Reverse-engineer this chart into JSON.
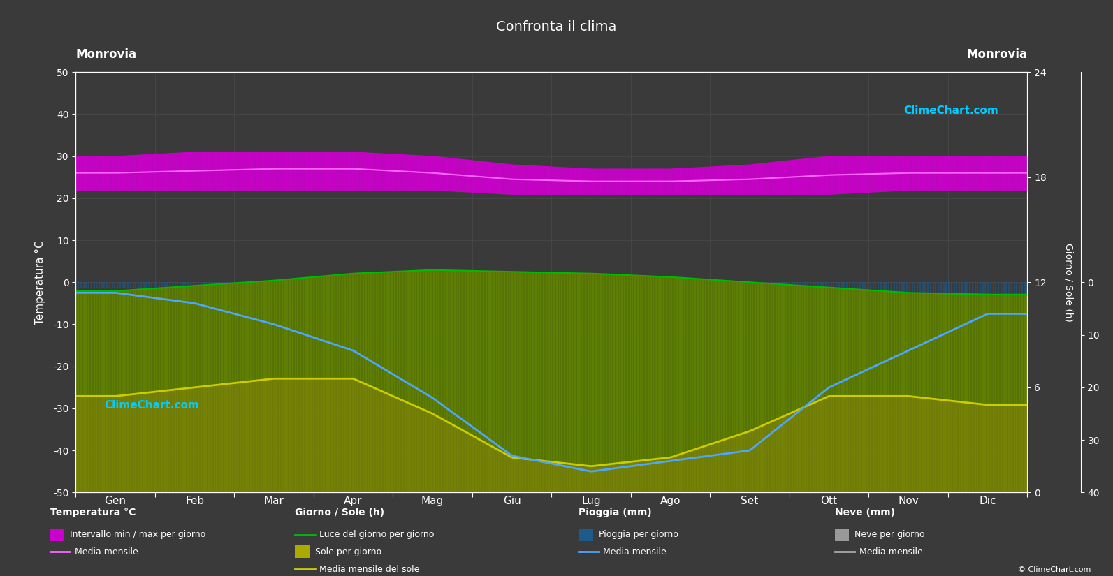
{
  "title": "Confronta il clima",
  "location": "Monrovia",
  "bg_color": "#3a3a3a",
  "text_color": "#ffffff",
  "grid_color": "#555555",
  "months": [
    "Gen",
    "Feb",
    "Mar",
    "Apr",
    "Mag",
    "Giu",
    "Lug",
    "Ago",
    "Set",
    "Ott",
    "Nov",
    "Dic"
  ],
  "temp_min": [
    22,
    22,
    22,
    22,
    22,
    21,
    21,
    21,
    21,
    21,
    22,
    22
  ],
  "temp_max": [
    30,
    31,
    31,
    31,
    30,
    28,
    27,
    27,
    28,
    30,
    30,
    30
  ],
  "temp_mean": [
    26,
    26.5,
    27,
    27,
    26,
    24.5,
    24,
    24,
    24.5,
    25.5,
    26,
    26
  ],
  "daylight_hours": [
    11.5,
    11.8,
    12.1,
    12.5,
    12.7,
    12.6,
    12.5,
    12.3,
    12.0,
    11.7,
    11.4,
    11.3
  ],
  "sunshine_hours": [
    5.5,
    6.0,
    6.5,
    6.5,
    4.5,
    2.0,
    1.5,
    2.0,
    3.5,
    5.5,
    5.5,
    5.0
  ],
  "rain_mm_per_day": [
    1.0,
    1.8,
    3.2,
    7.2,
    17.2,
    32.4,
    33.2,
    28.0,
    24.8,
    10.3,
    6.5,
    4.3
  ],
  "rain_mean_vals": [
    2,
    4,
    8,
    13,
    22,
    33,
    36,
    34,
    32,
    20,
    13,
    6
  ],
  "ylim_left": [
    -50,
    50
  ],
  "sun_axis_max": 24,
  "rain_axis_max": 40,
  "temp_band_color": "#cc00cc",
  "rain_band_color": "#1e5a8a",
  "rain_line_color": "#4da6ff",
  "temp_line_color": "#ff66ff",
  "sunshine_color": "#aaaa00",
  "daylight_color": "#006600",
  "sunshine_mean_color": "#cccc00",
  "snow_color": "#aaaaaa"
}
